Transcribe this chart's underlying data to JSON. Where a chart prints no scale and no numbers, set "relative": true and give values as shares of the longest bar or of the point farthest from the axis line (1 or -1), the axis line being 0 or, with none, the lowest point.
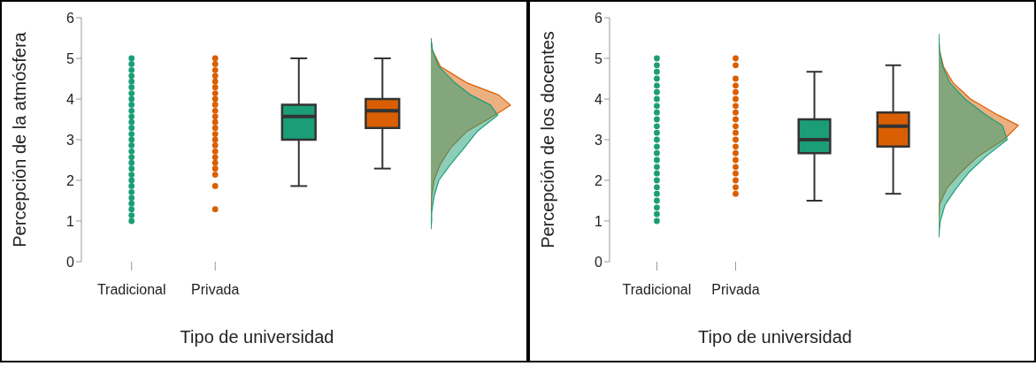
{
  "chart_data": [
    {
      "type": "scatter",
      "ylabel": "Percepción de la atmósfera",
      "xlabel": "Tipo de universidad",
      "categories": [
        "Tradicional",
        "Privada",
        null,
        null
      ],
      "ylim": [
        0,
        6
      ],
      "yticks": [
        0,
        1,
        2,
        3,
        4,
        5,
        6
      ],
      "series": [
        {
          "color": "#1b9e77",
          "x": [
            "Tradicional",
            "Tradicional",
            "Tradicional",
            "Tradicional",
            "Tradicional",
            "Tradicional",
            "Tradicional",
            "Tradicional",
            "Tradicional",
            "Tradicional",
            "Tradicional",
            "Tradicional",
            "Tradicional",
            "Tradicional",
            "Tradicional",
            "Tradicional",
            "Tradicional",
            "Tradicional",
            "Tradicional",
            "Tradicional",
            "Tradicional",
            "Tradicional",
            "Tradicional",
            "Tradicional",
            "Tradicional",
            "Tradicional",
            "Tradicional",
            "Tradicional",
            "Tradicional"
          ],
          "values": [
            1.0,
            1.14,
            1.29,
            1.43,
            1.57,
            1.71,
            1.86,
            2.0,
            2.14,
            2.29,
            2.43,
            2.57,
            2.71,
            2.86,
            3.0,
            3.14,
            3.29,
            3.43,
            3.57,
            3.71,
            3.86,
            4.0,
            4.14,
            4.29,
            4.43,
            4.57,
            4.71,
            4.86,
            5.0
          ]
        },
        {
          "color": "#d95f02",
          "x": [
            "Privada",
            "Privada",
            "Privada",
            "Privada",
            "Privada",
            "Privada",
            "Privada",
            "Privada",
            "Privada",
            "Privada",
            "Privada",
            "Privada",
            "Privada",
            "Privada",
            "Privada",
            "Privada",
            "Privada",
            "Privada",
            "Privada",
            "Privada",
            "Privada",
            "Privada",
            "Privada"
          ],
          "values": [
            1.29,
            1.86,
            2.14,
            2.29,
            2.43,
            2.57,
            2.71,
            2.86,
            3.0,
            3.14,
            3.29,
            3.43,
            3.57,
            3.71,
            3.86,
            4.0,
            4.14,
            4.29,
            4.43,
            4.57,
            4.71,
            4.86,
            5.0
          ]
        },
        {
          "type": "box",
          "colors": [
            null,
            null,
            "#1b9e77",
            "#d95f02"
          ],
          "boxes": [
            null,
            null,
            {
              "low": 1.86,
              "q1": 3.0,
              "median": 3.57,
              "q3": 3.86,
              "high": 5.0
            },
            {
              "low": 2.29,
              "q1": 3.29,
              "median": 3.71,
              "q3": 4.0,
              "high": 5.0
            }
          ]
        }
      ]
    },
    {
      "type": "area",
      "orientation": "horizontal",
      "relative": true,
      "ylim": [
        0,
        6
      ],
      "tick_labels": false,
      "x": [
        0.8,
        1.0,
        1.2,
        1.6,
        2.0,
        2.4,
        2.8,
        3.2,
        3.6,
        3.85,
        4.1,
        4.4,
        4.8,
        5.2,
        5.5
      ],
      "series": [
        {
          "color": "#d95f02",
          "values": [
            0,
            0,
            0,
            0.01,
            0.04,
            0.12,
            0.25,
            0.45,
            0.8,
            1,
            0.85,
            0.45,
            0.12,
            0.02,
            0
          ]
        },
        {
          "color": "#1b9e77",
          "values": [
            0,
            0.01,
            0.01,
            0.04,
            0.1,
            0.25,
            0.42,
            0.58,
            0.84,
            0.75,
            0.5,
            0.3,
            0.1,
            0.02,
            0
          ]
        }
      ]
    },
    {
      "type": "scatter",
      "ylabel": "Percepción de los docentes",
      "xlabel": "Tipo de universidad",
      "categories": [
        "Tradicional",
        "Privada",
        null,
        null
      ],
      "ylim": [
        0,
        6
      ],
      "yticks": [
        0,
        1,
        2,
        3,
        4,
        5,
        6
      ],
      "series": [
        {
          "color": "#1b9e77",
          "x": [
            "Tradicional",
            "Tradicional",
            "Tradicional",
            "Tradicional",
            "Tradicional",
            "Tradicional",
            "Tradicional",
            "Tradicional",
            "Tradicional",
            "Tradicional",
            "Tradicional",
            "Tradicional",
            "Tradicional",
            "Tradicional",
            "Tradicional",
            "Tradicional",
            "Tradicional",
            "Tradicional",
            "Tradicional",
            "Tradicional",
            "Tradicional",
            "Tradicional",
            "Tradicional",
            "Tradicional",
            "Tradicional"
          ],
          "values": [
            1.0,
            1.17,
            1.33,
            1.5,
            1.67,
            1.83,
            2.0,
            2.17,
            2.33,
            2.5,
            2.67,
            2.83,
            3.0,
            3.17,
            3.33,
            3.5,
            3.67,
            3.83,
            4.0,
            4.17,
            4.33,
            4.5,
            4.67,
            4.83,
            5.0
          ]
        },
        {
          "color": "#d95f02",
          "x": [
            "Privada",
            "Privada",
            "Privada",
            "Privada",
            "Privada",
            "Privada",
            "Privada",
            "Privada",
            "Privada",
            "Privada",
            "Privada",
            "Privada",
            "Privada",
            "Privada",
            "Privada",
            "Privada",
            "Privada",
            "Privada",
            "Privada",
            "Privada"
          ],
          "values": [
            1.67,
            1.83,
            2.0,
            2.17,
            2.33,
            2.5,
            2.67,
            2.83,
            3.0,
            3.17,
            3.33,
            3.5,
            3.67,
            3.83,
            4.0,
            4.17,
            4.33,
            4.5,
            4.83,
            5.0
          ]
        },
        {
          "type": "box",
          "colors": [
            null,
            null,
            "#1b9e77",
            "#d95f02"
          ],
          "boxes": [
            null,
            null,
            {
              "low": 1.5,
              "q1": 2.67,
              "median": 3.0,
              "q3": 3.5,
              "high": 4.67
            },
            {
              "low": 1.67,
              "q1": 2.83,
              "median": 3.33,
              "q3": 3.67,
              "high": 4.83
            }
          ]
        }
      ]
    },
    {
      "type": "area",
      "orientation": "horizontal",
      "relative": true,
      "ylim": [
        0,
        6
      ],
      "tick_labels": false,
      "x": [
        0.6,
        1.0,
        1.4,
        1.8,
        2.2,
        2.6,
        3.0,
        3.35,
        3.6,
        4.0,
        4.4,
        4.8,
        5.2,
        5.6
      ],
      "series": [
        {
          "color": "#d95f02",
          "values": [
            0,
            0,
            0.01,
            0.1,
            0.28,
            0.5,
            0.82,
            1,
            0.75,
            0.4,
            0.18,
            0.06,
            0.01,
            0
          ]
        },
        {
          "color": "#1b9e77",
          "values": [
            0,
            0.02,
            0.08,
            0.22,
            0.38,
            0.6,
            0.86,
            0.8,
            0.6,
            0.33,
            0.14,
            0.05,
            0.01,
            0
          ]
        }
      ]
    }
  ]
}
